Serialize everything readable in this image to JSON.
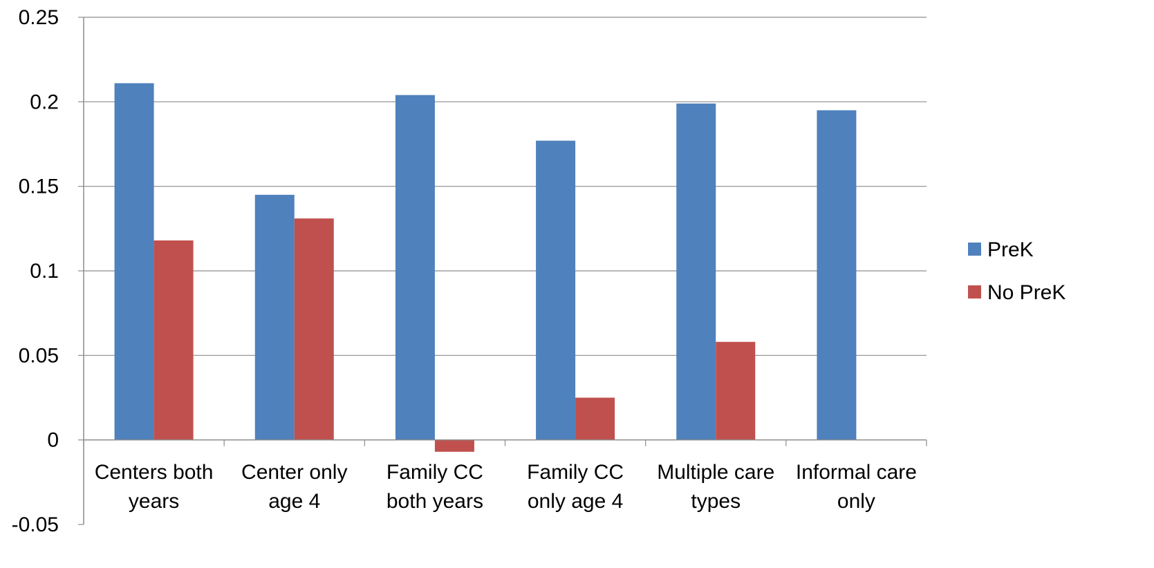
{
  "chart_data": {
    "type": "bar",
    "title": "",
    "xlabel": "",
    "ylabel": "",
    "categories": [
      [
        "Centers both",
        "years"
      ],
      [
        "Center only",
        "age 4"
      ],
      [
        "Family CC",
        "both years"
      ],
      [
        "Family CC",
        "only age 4"
      ],
      [
        "Multiple care",
        "types"
      ],
      [
        "Informal care",
        "only"
      ]
    ],
    "series": [
      {
        "name": "PreK",
        "color": "#4F81BD",
        "values": [
          0.211,
          0.145,
          0.204,
          0.177,
          0.199,
          0.195
        ]
      },
      {
        "name": "No PreK",
        "color": "#C0504D",
        "values": [
          0.118,
          0.131,
          -0.007,
          0.025,
          0.058,
          0.0
        ]
      }
    ],
    "ylim": [
      -0.05,
      0.25
    ],
    "yticks": [
      -0.05,
      0,
      0.05,
      0.1,
      0.15,
      0.2,
      0.25
    ],
    "ytick_labels": [
      "-0.05",
      "0",
      "0.05",
      "0.1",
      "0.15",
      "0.2",
      "0.25"
    ],
    "grid": true,
    "legend_position": "right"
  }
}
